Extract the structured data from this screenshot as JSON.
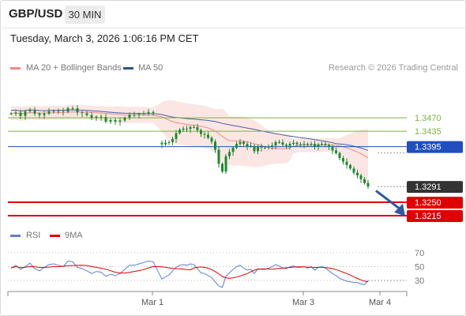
{
  "header": {
    "pair": "GBP/USD",
    "timeframe": "30 MIN",
    "timestamp": "Tuesday, March 3, 2026 1:06:16 PM CET"
  },
  "legend": {
    "ma20": "MA 20 + Bollinger Bands",
    "ma50": "MA 50",
    "rsi": "RSI",
    "ma9": "9MA"
  },
  "credit": "Research © 2026 Trading Central",
  "colors": {
    "ma20": "#f08a84",
    "bands_fill": "#fbe3e1",
    "ma50": "#4a5fa6",
    "resistance": "#7cb342",
    "pivot": "#1f4fbf",
    "support": "#e00000",
    "candle": "#1e8a2e",
    "rsi": "#5b7fd6",
    "rsi_ma": "#e00000",
    "last_price": "#333333"
  },
  "chart_data": [
    {
      "type": "candlestick",
      "series_names": [
        "MA 20 + Bollinger Bands",
        "MA 50"
      ],
      "ylim": [
        1.3175,
        1.359
      ],
      "x_ticks": [
        "Mar 1",
        "Mar 3",
        "Mar 4"
      ],
      "levels": [
        {
          "value": 1.347,
          "label": "1.3470",
          "kind": "resistance"
        },
        {
          "value": 1.3435,
          "label": "1.3435",
          "kind": "resistance"
        },
        {
          "value": 1.3395,
          "label": "1.3395",
          "kind": "pivot"
        },
        {
          "value": 1.325,
          "label": "1.3250",
          "kind": "support"
        },
        {
          "value": 1.3215,
          "label": "1.3215",
          "kind": "support"
        }
      ],
      "last_price": {
        "value": 1.3291,
        "label": "1.3291"
      },
      "forecast": "down",
      "close": [
        1.3481,
        1.3484,
        1.3475,
        1.3487,
        1.349,
        1.3481,
        1.3477,
        1.3481,
        1.3487,
        1.3488,
        1.3488,
        1.3486,
        1.3495,
        1.3495,
        1.3484,
        1.3482,
        1.3477,
        1.347,
        1.3473,
        1.3472,
        1.346,
        1.3464,
        1.346,
        1.3463,
        1.347,
        1.3478,
        1.3478,
        1.348,
        1.3482,
        1.3485,
        1.3484,
        1.3401,
        1.3405,
        1.3407,
        1.3415,
        1.343,
        1.3439,
        1.3442,
        1.3441,
        1.3446,
        1.3446,
        1.3438,
        1.3428,
        1.3426,
        1.3418,
        1.3408,
        1.3387,
        1.335,
        1.333,
        1.337,
        1.3381,
        1.3392,
        1.3402,
        1.3407,
        1.3402,
        1.3396,
        1.3397,
        1.3383,
        1.3394,
        1.3392,
        1.3393,
        1.3395,
        1.3398,
        1.3407,
        1.3406,
        1.34,
        1.3397,
        1.3402,
        1.3405,
        1.3401,
        1.3401,
        1.3402,
        1.34,
        1.3402,
        1.3395,
        1.3401,
        1.3402,
        1.3399,
        1.3394,
        1.3385,
        1.3378,
        1.3365,
        1.3356,
        1.3347,
        1.3338,
        1.3327,
        1.332,
        1.331,
        1.33,
        1.3291
      ]
    },
    {
      "type": "line",
      "title": "RSI",
      "series_names": [
        "RSI",
        "9MA"
      ],
      "ylim": [
        10,
        85
      ],
      "y_ticks": [
        30,
        50,
        70
      ],
      "rsi": [
        48,
        52,
        46,
        50,
        55,
        47,
        44,
        49,
        53,
        54,
        52,
        50,
        58,
        57,
        49,
        47,
        44,
        40,
        43,
        42,
        36,
        39,
        37,
        40,
        46,
        52,
        52,
        54,
        56,
        58,
        57,
        32,
        35,
        38,
        44,
        49,
        52,
        53,
        52,
        54,
        53,
        47,
        41,
        40,
        37,
        34,
        28,
        22,
        20,
        36,
        41,
        46,
        50,
        52,
        48,
        45,
        46,
        40,
        47,
        46,
        46,
        48,
        50,
        53,
        51,
        48,
        47,
        50,
        51,
        49,
        49,
        50,
        48,
        50,
        45,
        49,
        50,
        48,
        44,
        40,
        37,
        33,
        31,
        29,
        28,
        27,
        27,
        25,
        24,
        30
      ]
    }
  ]
}
